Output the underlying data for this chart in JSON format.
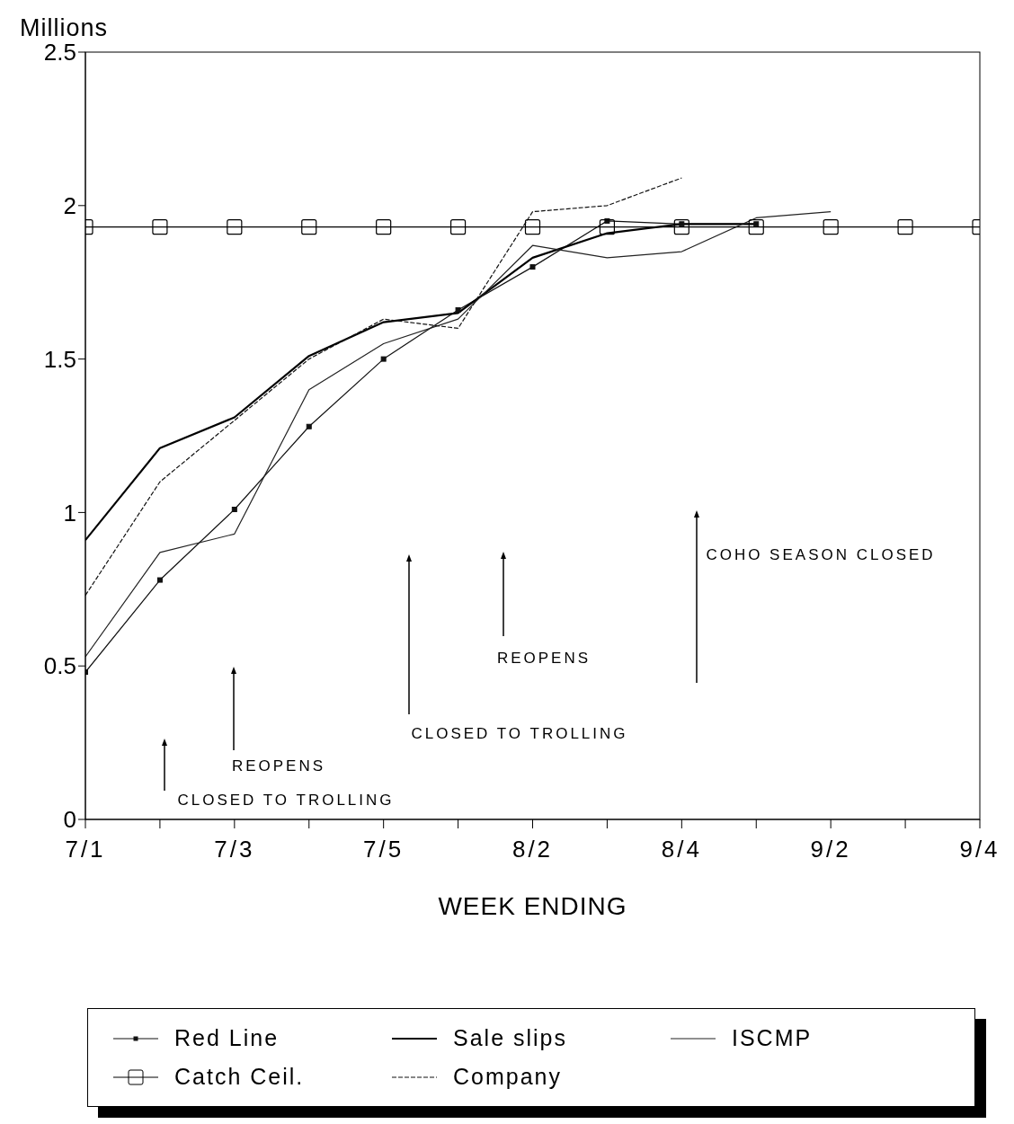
{
  "chart_data": {
    "type": "line",
    "xlabel": "WEEK ENDING",
    "ylabel": "Millions",
    "categories": [
      "7/1",
      null,
      "7/3",
      null,
      "7/5",
      null,
      "8/2",
      null,
      "8/4",
      null,
      "9/2",
      null,
      "9/4"
    ],
    "series": [
      {
        "name": "Red Line",
        "color": "#111111",
        "marker": "square",
        "line_style": "solid",
        "values": [
          0.48,
          0.78,
          1.01,
          1.28,
          1.5,
          1.66,
          1.8,
          1.95,
          1.94,
          1.94,
          null,
          null,
          null
        ]
      },
      {
        "name": "Sale slips",
        "color": "#000000",
        "marker": "none",
        "line_style": "solid",
        "values": [
          0.91,
          1.21,
          1.31,
          1.51,
          1.62,
          1.65,
          1.83,
          1.91,
          1.94,
          1.94,
          null,
          null,
          null
        ]
      },
      {
        "name": "ISCMP",
        "color": "#222222",
        "marker": "none",
        "line_style": "solid",
        "values": [
          0.53,
          0.87,
          0.93,
          1.4,
          1.55,
          1.63,
          1.87,
          1.83,
          1.85,
          1.96,
          1.98,
          null,
          null
        ]
      },
      {
        "name": "Catch Ceil.",
        "color": "#000000",
        "marker": "square",
        "line_style": "solid",
        "values": [
          1.93,
          1.93,
          1.93,
          1.93,
          1.93,
          1.93,
          1.93,
          1.93,
          1.93,
          1.93,
          1.93,
          1.93,
          1.93
        ]
      },
      {
        "name": "Company",
        "color": "#111111",
        "marker": "none",
        "line_style": "dashed",
        "values": [
          0.73,
          1.1,
          1.3,
          1.5,
          1.63,
          1.6,
          1.98,
          2.0,
          2.09,
          null,
          null,
          null,
          null
        ]
      }
    ],
    "ylim": [
      0,
      2.5
    ],
    "yticks": [
      0,
      0.5,
      1,
      1.5,
      2,
      2.5
    ],
    "grid": false,
    "legend": "bottom",
    "annotations": [
      "CLOSED TO TROLLING",
      "REOPENS",
      "CLOSED TO TROLLING",
      "REOPENS",
      "COHO SEASON CLOSED"
    ]
  }
}
